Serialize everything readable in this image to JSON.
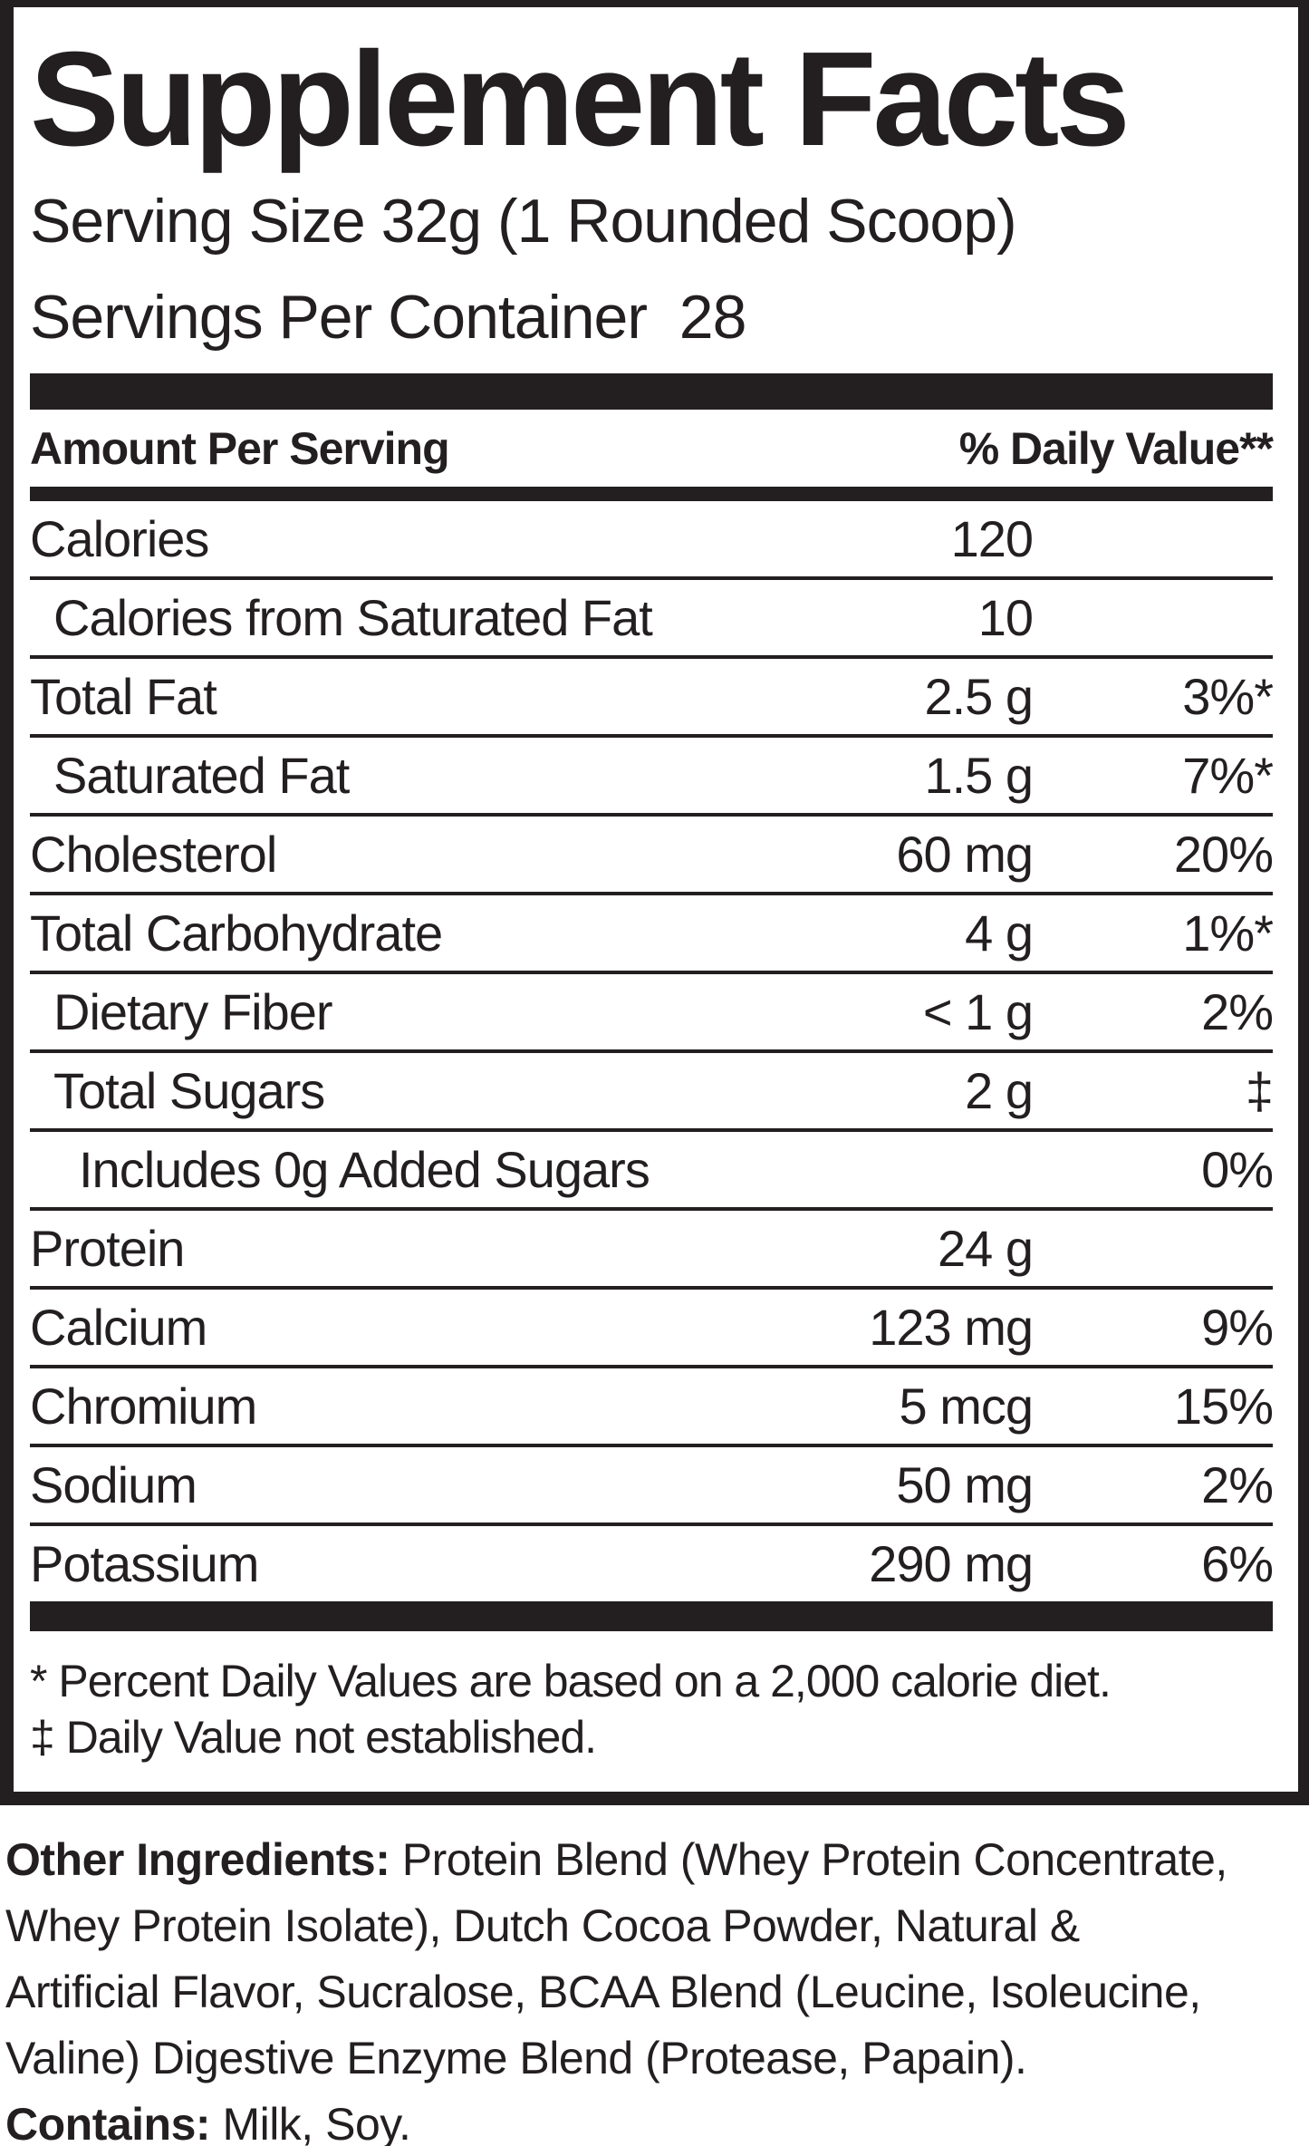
{
  "panel": {
    "title": "Supplement Facts",
    "serving_size": "Serving Size 32g (1 Rounded Scoop)",
    "servings_per_container": "Servings Per Container  28",
    "header": {
      "amount_label": "Amount Per Serving",
      "daily_value_label": "% Daily Value**"
    },
    "rows": [
      {
        "label": "Calories",
        "amount": "120",
        "dv": "",
        "indent": 0
      },
      {
        "label": "Calories from Saturated Fat",
        "amount": "10",
        "dv": "",
        "indent": 1
      },
      {
        "label": "Total Fat",
        "amount": "2.5 g",
        "dv": "3%*",
        "indent": 0
      },
      {
        "label": "Saturated Fat",
        "amount": "1.5 g",
        "dv": "7%*",
        "indent": 1
      },
      {
        "label": "Cholesterol",
        "amount": "60 mg",
        "dv": "20%",
        "indent": 0
      },
      {
        "label": "Total Carbohydrate",
        "amount": "4 g",
        "dv": "1%*",
        "indent": 0
      },
      {
        "label": "Dietary Fiber",
        "amount": "< 1 g",
        "dv": "2%",
        "indent": 1
      },
      {
        "label": "Total Sugars",
        "amount": "2 g",
        "dv": "‡",
        "indent": 1
      },
      {
        "label": "Includes 0g Added Sugars",
        "amount": "",
        "dv": "0%",
        "indent": 2
      },
      {
        "label": "Protein",
        "amount": "24 g",
        "dv": "",
        "indent": 0
      },
      {
        "label": "Calcium",
        "amount": "123 mg",
        "dv": "9%",
        "indent": 0
      },
      {
        "label": "Chromium",
        "amount": "5 mcg",
        "dv": "15%",
        "indent": 0
      },
      {
        "label": "Sodium",
        "amount": "50 mg",
        "dv": "2%",
        "indent": 0
      },
      {
        "label": "Potassium",
        "amount": "290 mg",
        "dv": "6%",
        "indent": 0
      }
    ],
    "footnotes": {
      "percent": "* Percent Daily Values are based on a 2,000 calorie diet.",
      "dagger": "‡ Daily Value not established."
    }
  },
  "other_ingredients": {
    "heading": "Other Ingredients:",
    "line1": " Protein Blend (Whey Protein Concentrate,",
    "line2": "Whey Protein Isolate), Dutch Cocoa Powder, Natural &",
    "line3": "Artificial Flavor, Sucralose, BCAA Blend (Leucine, Isoleucine,",
    "line4": "Valine) Digestive Enzyme Blend (Protease, Papain)."
  },
  "contains": {
    "heading": "Contains:",
    "text": " Milk, Soy."
  },
  "colors": {
    "ink": "#231f20",
    "background": "#ffffff"
  }
}
